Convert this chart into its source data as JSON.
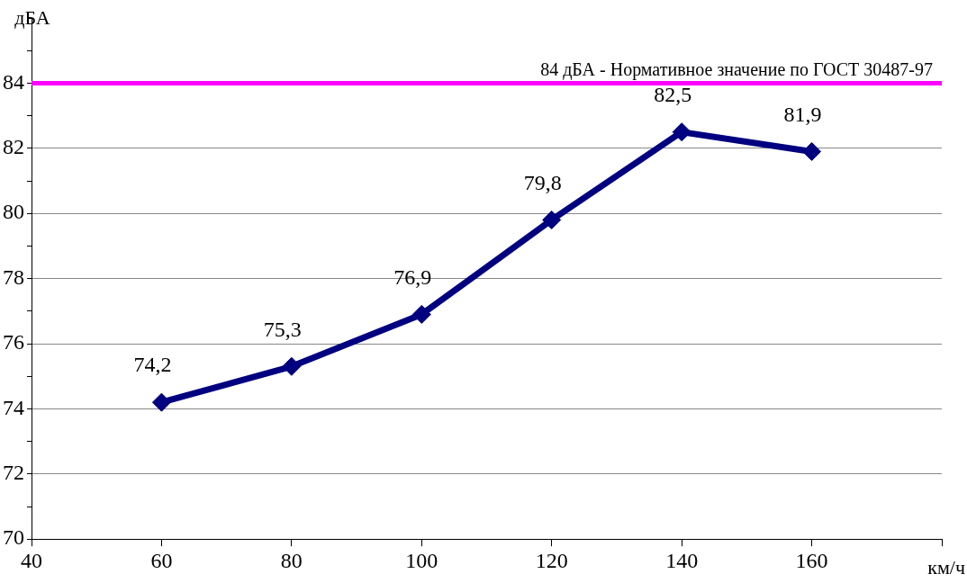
{
  "chart_data": {
    "type": "line",
    "xlabel": "км/ч",
    "ylabel": "дБА",
    "x": [
      60,
      80,
      100,
      120,
      140,
      160
    ],
    "series": [
      {
        "color": "#000080",
        "values": [
          74.2,
          75.3,
          76.9,
          79.8,
          82.5,
          81.9
        ],
        "value_labels": [
          "74,2",
          "75,3",
          "76,9",
          "79,8",
          "82,5",
          "81,9"
        ]
      }
    ],
    "xlim": [
      40,
      180
    ],
    "xticks": [
      40,
      60,
      80,
      100,
      120,
      140,
      160,
      {
        "value": 180,
        "label": null
      }
    ],
    "ylim": [
      70,
      86
    ],
    "yticks": [
      70,
      {
        "value": 71,
        "label": null
      },
      72,
      {
        "value": 73,
        "label": null
      },
      74,
      {
        "value": 75,
        "label": null
      },
      76,
      {
        "value": 77,
        "label": null
      },
      78,
      {
        "value": 79,
        "label": null
      },
      80,
      {
        "value": 81,
        "label": null
      },
      82,
      {
        "value": 83,
        "label": null
      },
      84,
      {
        "value": 85,
        "label": null
      },
      {
        "value": 86,
        "label": null
      }
    ],
    "grid": "y",
    "legend": false,
    "marker": "diamond",
    "line_style": "solid",
    "ref_lines": [
      {
        "axis": "y",
        "value": 84,
        "label": "84 дБА - Нормативное значение по ГОСТ 30487-97",
        "color": "#ff00ff"
      }
    ]
  }
}
